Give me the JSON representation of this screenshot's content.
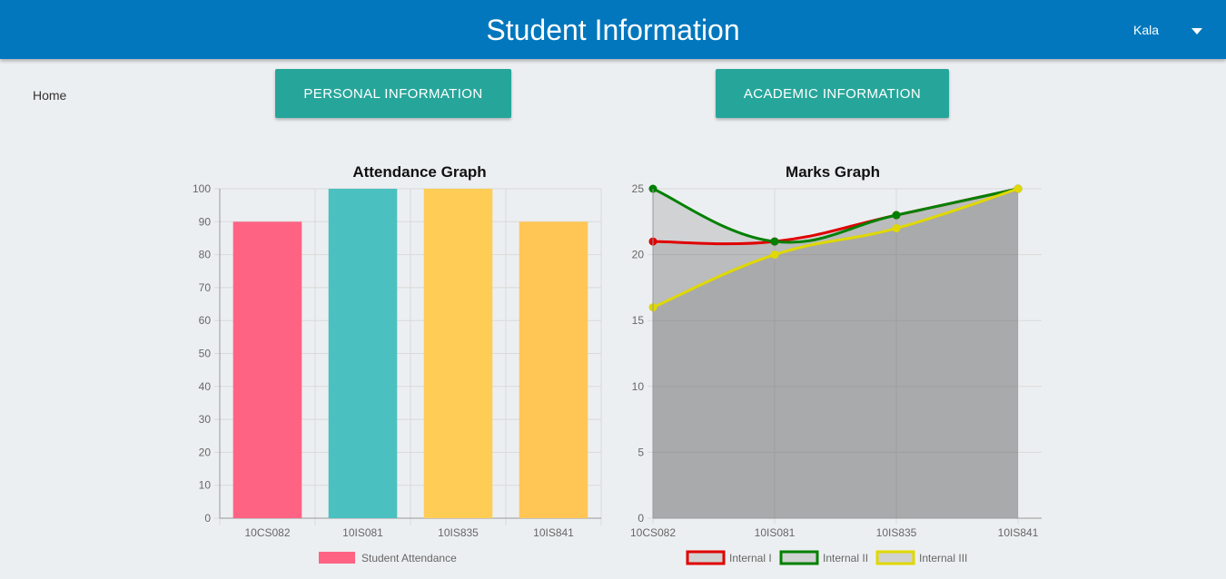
{
  "header": {
    "title": "Student Information",
    "user_name": "Kala",
    "user_menu_icon": "caret-down-icon"
  },
  "nav": {
    "home": "Home"
  },
  "buttons": {
    "personal": "PERSONAL INFORMATION",
    "academic": "ACADEMIC INFORMATION"
  },
  "colors": {
    "header": "#0277bd",
    "button": "#26a69a",
    "background": "#eceff1"
  },
  "chart_data": [
    {
      "type": "bar",
      "title": "Attendance Graph",
      "categories": [
        "10CS082",
        "10IS081",
        "10IS835",
        "10IS841"
      ],
      "ylim": [
        0,
        100
      ],
      "yticks": [
        0,
        10,
        20,
        30,
        40,
        50,
        60,
        70,
        80,
        90,
        100
      ],
      "series": [
        {
          "name": "Student Attendance",
          "values": [
            90,
            100,
            100,
            90
          ],
          "colors": [
            "#ff6384",
            "#4bc0c0",
            "#ffcd56",
            "#ffc656"
          ]
        }
      ],
      "legend": "bottom",
      "grid": true
    },
    {
      "type": "area",
      "title": "Marks Graph",
      "categories": [
        "10CS082",
        "10IS081",
        "10IS835",
        "10IS841"
      ],
      "ylim": [
        0,
        25
      ],
      "yticks": [
        0,
        5,
        10,
        15,
        20,
        25
      ],
      "series": [
        {
          "name": "Internal I",
          "values": [
            21,
            21,
            23,
            25
          ],
          "color": "#e00000"
        },
        {
          "name": "Internal II",
          "values": [
            25,
            21,
            23,
            25
          ],
          "color": "#008000"
        },
        {
          "name": "Internal III",
          "values": [
            16,
            20,
            22,
            25
          ],
          "color": "#e0d800"
        }
      ],
      "legend": "bottom",
      "grid": true
    }
  ]
}
